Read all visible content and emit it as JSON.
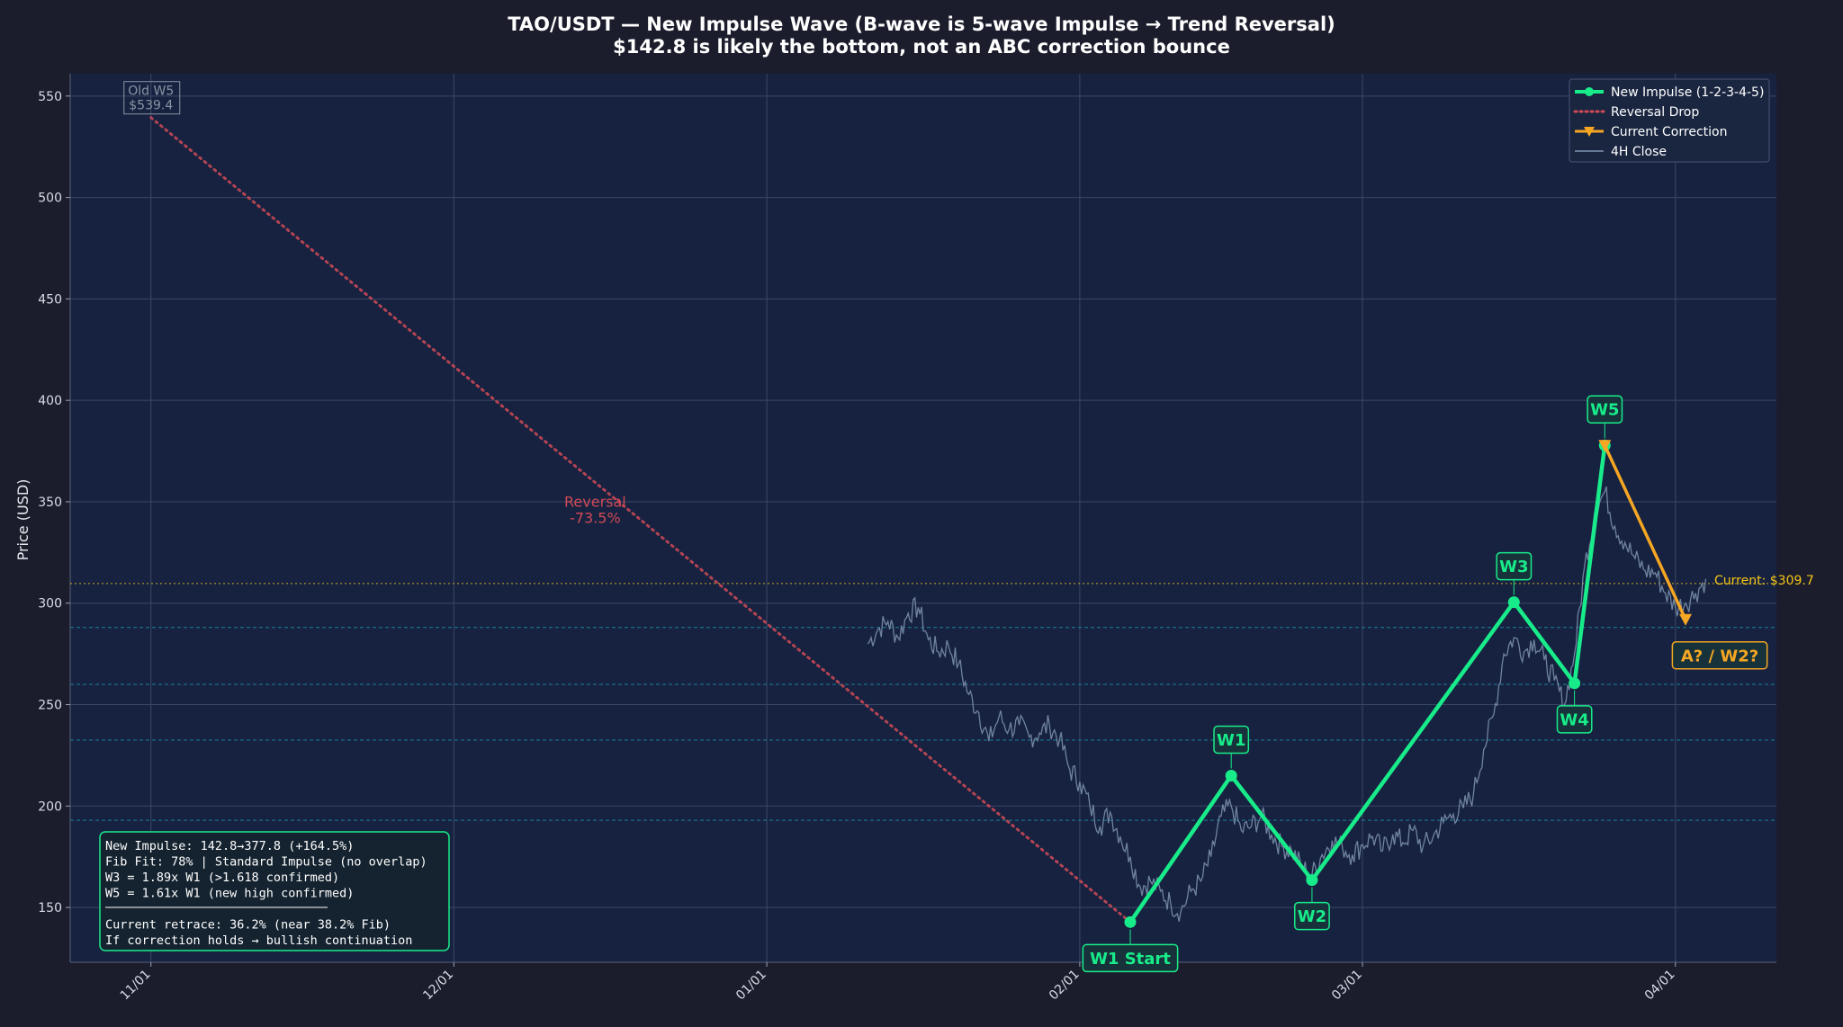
{
  "chart_data": {
    "type": "line",
    "title": "TAO/USDT — New Impulse Wave (B-wave is 5-wave Impulse → Trend Reversal)",
    "subtitle": "$142.8 is likely the bottom, not an ABC correction bounce",
    "xlabel": "",
    "ylabel": "Price (USD)",
    "ylim": [
      123,
      561
    ],
    "xlim": [
      "2024-10-24",
      "2025-04-11"
    ],
    "x_ticks": [
      "2024-11-01",
      "2024-12-01",
      "2025-01-01",
      "2025-02-01",
      "2025-03-01",
      "2025-04-01"
    ],
    "x_tick_labels": [
      "11/01",
      "12/01",
      "01/01",
      "02/01",
      "03/01",
      "04/01"
    ],
    "y_ticks": [
      150,
      200,
      250,
      300,
      350,
      400,
      450,
      500,
      550
    ],
    "grid": true,
    "legend_position": "top-right",
    "colors": {
      "impulse": "#18ec8a",
      "reversal": "#d04a57",
      "correction": "#f5a623",
      "close": "#7f95b0",
      "current": "#f5c518",
      "fib": "#1e98a8",
      "annotation_gray": "#8a93a3"
    },
    "legend": [
      {
        "label": "New Impulse (1-2-3-4-5)",
        "key": "impulse"
      },
      {
        "label": "Reversal Drop",
        "key": "reversal"
      },
      {
        "label": "Current Correction",
        "key": "correction"
      },
      {
        "label": "4H Close",
        "key": "close"
      }
    ],
    "series": [
      {
        "name": "New Impulse (1-2-3-4-5)",
        "points": [
          {
            "x": "2025-02-06",
            "y": 142.8,
            "label": "W1 Start"
          },
          {
            "x": "2025-02-16",
            "y": 215,
            "label": "W1"
          },
          {
            "x": "2025-02-24",
            "y": 163.5,
            "label": "W2"
          },
          {
            "x": "2025-03-16",
            "y": 300.5,
            "label": "W3"
          },
          {
            "x": "2025-03-22",
            "y": 260.5,
            "label": "W4"
          },
          {
            "x": "2025-03-25",
            "y": 377.8,
            "label": "W5"
          }
        ]
      },
      {
        "name": "Reversal Drop",
        "points": [
          {
            "x": "2024-11-01",
            "y": 539.4
          },
          {
            "x": "2025-02-06",
            "y": 142.8
          }
        ]
      },
      {
        "name": "Current Correction",
        "points": [
          {
            "x": "2025-03-25",
            "y": 377.8
          },
          {
            "x": "2025-04-02",
            "y": 292
          }
        ]
      },
      {
        "name": "4H Close",
        "points": [
          {
            "x": "2025-01-11",
            "y": 280
          },
          {
            "x": "2025-01-12",
            "y": 287
          },
          {
            "x": "2025-01-13",
            "y": 291
          },
          {
            "x": "2025-01-14",
            "y": 283
          },
          {
            "x": "2025-01-15",
            "y": 295
          },
          {
            "x": "2025-01-16",
            "y": 298
          },
          {
            "x": "2025-01-17",
            "y": 282
          },
          {
            "x": "2025-01-18",
            "y": 276
          },
          {
            "x": "2025-01-19",
            "y": 279
          },
          {
            "x": "2025-01-20",
            "y": 270
          },
          {
            "x": "2025-01-21",
            "y": 255
          },
          {
            "x": "2025-01-22",
            "y": 246
          },
          {
            "x": "2025-01-23",
            "y": 232
          },
          {
            "x": "2025-01-24",
            "y": 244
          },
          {
            "x": "2025-01-25",
            "y": 238
          },
          {
            "x": "2025-01-26",
            "y": 240
          },
          {
            "x": "2025-01-27",
            "y": 234
          },
          {
            "x": "2025-01-28",
            "y": 236
          },
          {
            "x": "2025-01-29",
            "y": 240
          },
          {
            "x": "2025-01-30",
            "y": 233
          },
          {
            "x": "2025-01-31",
            "y": 218
          },
          {
            "x": "2025-02-01",
            "y": 212
          },
          {
            "x": "2025-02-02",
            "y": 200
          },
          {
            "x": "2025-02-03",
            "y": 190
          },
          {
            "x": "2025-02-04",
            "y": 197
          },
          {
            "x": "2025-02-05",
            "y": 185
          },
          {
            "x": "2025-02-06",
            "y": 175
          },
          {
            "x": "2025-02-07",
            "y": 160
          },
          {
            "x": "2025-02-08",
            "y": 163
          },
          {
            "x": "2025-02-09",
            "y": 158
          },
          {
            "x": "2025-02-10",
            "y": 152
          },
          {
            "x": "2025-02-11",
            "y": 148
          },
          {
            "x": "2025-02-12",
            "y": 158
          },
          {
            "x": "2025-02-13",
            "y": 163
          },
          {
            "x": "2025-02-14",
            "y": 175
          },
          {
            "x": "2025-02-15",
            "y": 195
          },
          {
            "x": "2025-02-16",
            "y": 200
          },
          {
            "x": "2025-02-17",
            "y": 188
          },
          {
            "x": "2025-02-18",
            "y": 190
          },
          {
            "x": "2025-02-19",
            "y": 195
          },
          {
            "x": "2025-02-20",
            "y": 186
          },
          {
            "x": "2025-02-21",
            "y": 180
          },
          {
            "x": "2025-02-22",
            "y": 178
          },
          {
            "x": "2025-02-23",
            "y": 170
          },
          {
            "x": "2025-02-24",
            "y": 166
          },
          {
            "x": "2025-02-25",
            "y": 176
          },
          {
            "x": "2025-02-26",
            "y": 183
          },
          {
            "x": "2025-02-27",
            "y": 180
          },
          {
            "x": "2025-02-28",
            "y": 176
          },
          {
            "x": "2025-03-01",
            "y": 181
          },
          {
            "x": "2025-03-02",
            "y": 185
          },
          {
            "x": "2025-03-03",
            "y": 178
          },
          {
            "x": "2025-03-04",
            "y": 186
          },
          {
            "x": "2025-03-05",
            "y": 182
          },
          {
            "x": "2025-03-06",
            "y": 188
          },
          {
            "x": "2025-03-07",
            "y": 180
          },
          {
            "x": "2025-03-08",
            "y": 185
          },
          {
            "x": "2025-03-09",
            "y": 192
          },
          {
            "x": "2025-03-10",
            "y": 196
          },
          {
            "x": "2025-03-11",
            "y": 199
          },
          {
            "x": "2025-03-12",
            "y": 206
          },
          {
            "x": "2025-03-13",
            "y": 228
          },
          {
            "x": "2025-03-14",
            "y": 245
          },
          {
            "x": "2025-03-15",
            "y": 275
          },
          {
            "x": "2025-03-16",
            "y": 283
          },
          {
            "x": "2025-03-17",
            "y": 276
          },
          {
            "x": "2025-03-18",
            "y": 282
          },
          {
            "x": "2025-03-19",
            "y": 272
          },
          {
            "x": "2025-03-20",
            "y": 262
          },
          {
            "x": "2025-03-21",
            "y": 250
          },
          {
            "x": "2025-03-22",
            "y": 275
          },
          {
            "x": "2025-03-23",
            "y": 318
          },
          {
            "x": "2025-03-24",
            "y": 345
          },
          {
            "x": "2025-03-25",
            "y": 355
          },
          {
            "x": "2025-03-26",
            "y": 338
          },
          {
            "x": "2025-03-27",
            "y": 330
          },
          {
            "x": "2025-03-28",
            "y": 322
          },
          {
            "x": "2025-03-29",
            "y": 316
          },
          {
            "x": "2025-03-30",
            "y": 315
          },
          {
            "x": "2025-03-31",
            "y": 305
          },
          {
            "x": "2025-04-01",
            "y": 298
          },
          {
            "x": "2025-04-02",
            "y": 300
          },
          {
            "x": "2025-04-03",
            "y": 305
          },
          {
            "x": "2025-04-04",
            "y": 312
          }
        ]
      }
    ],
    "horizontal_lines": [
      {
        "y": 309.7,
        "style": "dotted",
        "color_key": "current"
      },
      {
        "y": 288,
        "style": "dashed",
        "color_key": "fib"
      },
      {
        "y": 260,
        "style": "dashed",
        "color_key": "fib"
      },
      {
        "y": 232.5,
        "style": "dashed",
        "color_key": "fib"
      },
      {
        "y": 193,
        "style": "dashed",
        "color_key": "fib"
      }
    ],
    "annotations": {
      "wave_labels": [
        {
          "text": "W1 Start",
          "x": "2025-02-06",
          "y": 142.8,
          "side": "below"
        },
        {
          "text": "W1",
          "x": "2025-02-16",
          "y": 215,
          "side": "above"
        },
        {
          "text": "W2",
          "x": "2025-02-24",
          "y": 163.5,
          "side": "below"
        },
        {
          "text": "W3",
          "x": "2025-03-16",
          "y": 300.5,
          "side": "above"
        },
        {
          "text": "W4",
          "x": "2025-03-22",
          "y": 260.5,
          "side": "below"
        },
        {
          "text": "W5",
          "x": "2025-03-25",
          "y": 377.8,
          "side": "above"
        }
      ],
      "correction_label": {
        "text": "A? / W2?",
        "x": "2025-04-02",
        "y": 292
      },
      "old_w5": {
        "line1": "Old W5",
        "line2": "$539.4",
        "x": "2024-11-01",
        "y": 539.4
      },
      "reversal": {
        "line1": "Reversal",
        "line2": "-73.5%",
        "x": "2024-12-15",
        "y": 344
      },
      "current": {
        "text": "Current: $309.7",
        "y": 309.7
      }
    },
    "info_box": {
      "lines": [
        "New Impulse: 142.8→377.8 (+164.5%)",
        "Fib Fit: 78% | Standard Impulse (no overlap)",
        "W3 = 1.89x W1 (>1.618 confirmed)",
        "W5 = 1.61x W1 (new high confirmed)",
        "————————————————————",
        "Current retrace: 36.2% (near 38.2% Fib)",
        "If correction holds → bullish continuation"
      ]
    }
  }
}
